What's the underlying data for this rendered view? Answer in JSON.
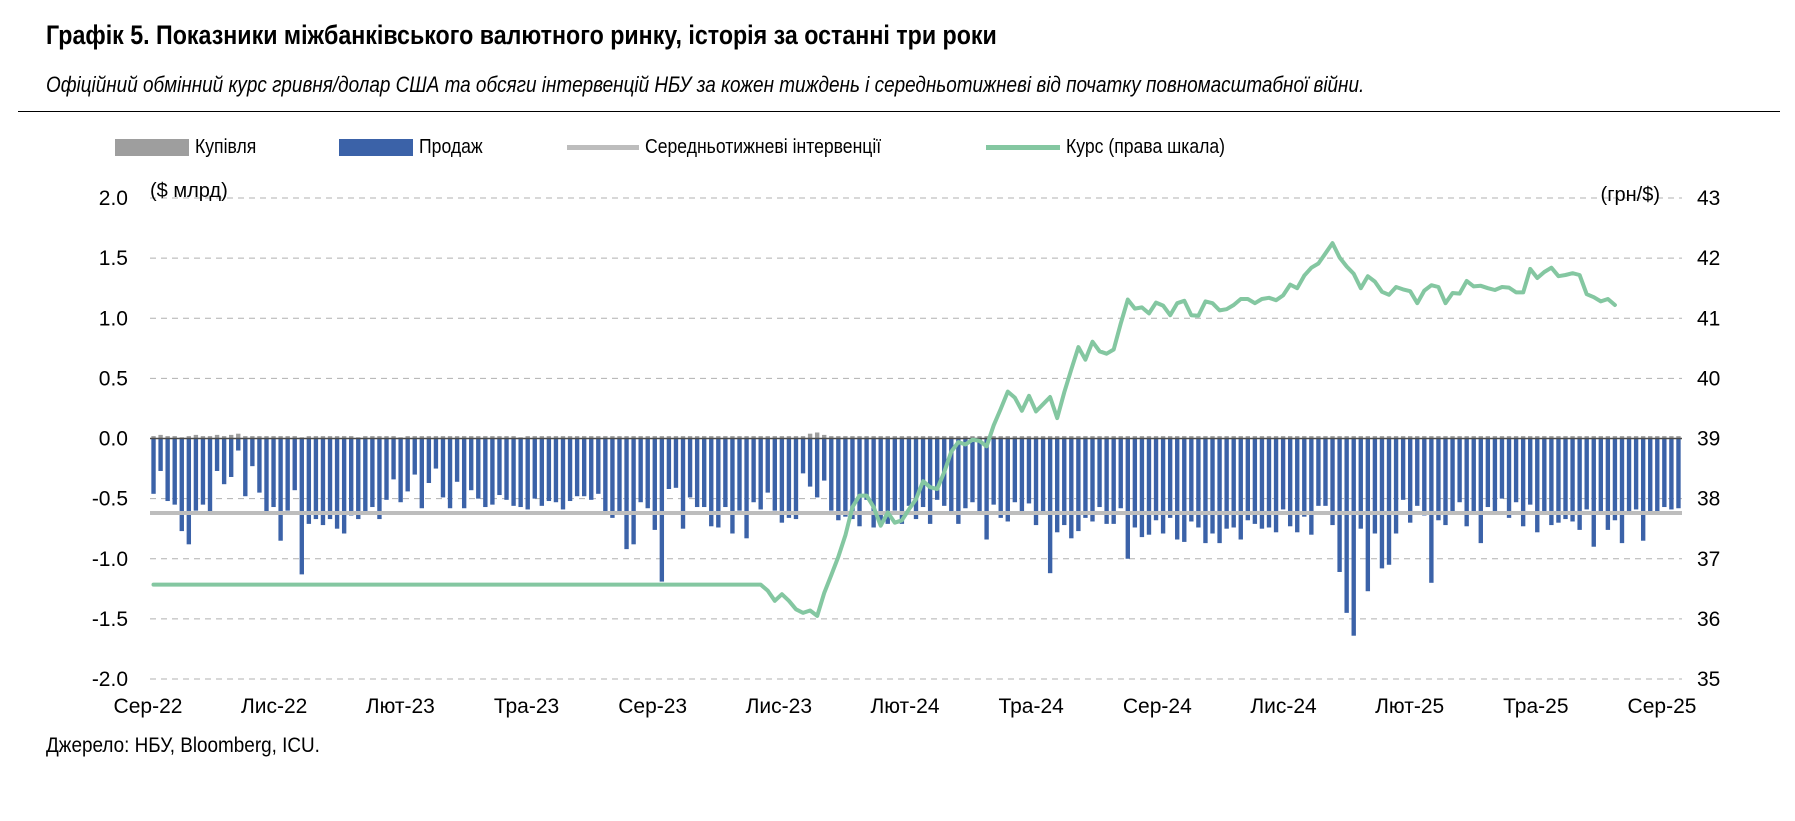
{
  "header": {
    "title": "Графік 5. Показники міжбанківського валютного ринку, історія за останні три роки",
    "subtitle": "Офіційний обмінний курс гривня/долар США та обсяги інтервенцій НБУ за кожен тиждень і середньотижневі від початку повномасштабної війни."
  },
  "footer": {
    "source": "Джерело: НБУ, Bloomberg, ICU."
  },
  "colors": {
    "buy": "#9e9e9e",
    "sell": "#3b62a8",
    "average": "#bdbdbd",
    "rate": "#84c7a1",
    "grid": "#b0b0b0"
  },
  "chart_data": {
    "type": "bar",
    "legend": [
      {
        "label": "Купівля",
        "kind": "bar",
        "color": "#9e9e9e"
      },
      {
        "label": "Продаж",
        "kind": "bar",
        "color": "#3b62a8"
      },
      {
        "label": "Середньотижневі інтервенції",
        "kind": "line",
        "color": "#bdbdbd"
      },
      {
        "label": "Курс (права шкала)",
        "kind": "line",
        "color": "#84c7a1"
      }
    ],
    "legend_position": "top",
    "grid": true,
    "y_left": {
      "unit_label": "($ млрд)",
      "range": [
        -2.0,
        2.0
      ],
      "ticks": [
        "2.0",
        "1.5",
        "1.0",
        "0.5",
        "0.0",
        "-0.5",
        "-1.0",
        "-1.5",
        "-2.0"
      ]
    },
    "y_right": {
      "unit_label": "(грн/$)",
      "range": [
        35,
        43
      ],
      "ticks": [
        "43",
        "42",
        "41",
        "40",
        "39",
        "38",
        "37",
        "36",
        "35"
      ]
    },
    "x_tick_labels": [
      "Сер-22",
      "Лис-22",
      "Лют-23",
      "Тра-23",
      "Сер-23",
      "Лис-23",
      "Лют-24",
      "Тра-24",
      "Сер-24",
      "Лис-24",
      "Лют-25",
      "Тра-25",
      "Сер-25"
    ],
    "series": [
      {
        "name": "Продаж",
        "values": [
          -0.46,
          -0.27,
          -0.52,
          -0.55,
          -0.77,
          -0.88,
          -0.6,
          -0.55,
          -0.63,
          -0.27,
          -0.38,
          -0.32,
          -0.1,
          -0.48,
          -0.23,
          -0.45,
          -0.62,
          -0.57,
          -0.85,
          -0.6,
          -0.43,
          -1.13,
          -0.71,
          -0.67,
          -0.72,
          -0.67,
          -0.75,
          -0.79,
          -0.64,
          -0.67,
          -0.61,
          -0.57,
          -0.67,
          -0.51,
          -0.34,
          -0.53,
          -0.44,
          -0.3,
          -0.58,
          -0.37,
          -0.25,
          -0.49,
          -0.58,
          -0.36,
          -0.58,
          -0.43,
          -0.5,
          -0.57,
          -0.55,
          -0.47,
          -0.51,
          -0.56,
          -0.57,
          -0.59,
          -0.5,
          -0.56,
          -0.52,
          -0.53,
          -0.59,
          -0.52,
          -0.48,
          -0.48,
          -0.51,
          -0.46,
          -0.61,
          -0.66,
          -0.61,
          -0.92,
          -0.88,
          -0.53,
          -0.58,
          -0.76,
          -1.19,
          -0.42,
          -0.41,
          -0.75,
          -0.49,
          -0.57,
          -0.57,
          -0.73,
          -0.74,
          -0.57,
          -0.79,
          -0.6,
          -0.83,
          -0.53,
          -0.59,
          -0.45,
          -0.6,
          -0.7,
          -0.66,
          -0.67,
          -0.29,
          -0.4,
          -0.49,
          -0.35,
          -0.6,
          -0.68,
          -0.65,
          -0.67,
          -0.73,
          -0.51,
          -0.74,
          -0.72,
          -0.71,
          -0.6,
          -0.71,
          -0.56,
          -0.67,
          -0.57,
          -0.71,
          -0.51,
          -0.56,
          -0.63,
          -0.71,
          -0.58,
          -0.53,
          -0.63,
          -0.84,
          -0.55,
          -0.66,
          -0.69,
          -0.53,
          -0.63,
          -0.54,
          -0.72,
          -0.61,
          -1.12,
          -0.78,
          -0.72,
          -0.83,
          -0.77,
          -0.66,
          -0.69,
          -0.57,
          -0.71,
          -0.71,
          -0.58,
          -1.0,
          -0.74,
          -0.82,
          -0.8,
          -0.68,
          -0.79,
          -0.66,
          -0.84,
          -0.86,
          -0.69,
          -0.74,
          -0.87,
          -0.79,
          -0.87,
          -0.75,
          -0.74,
          -0.84,
          -0.68,
          -0.71,
          -0.75,
          -0.74,
          -0.78,
          -0.59,
          -0.73,
          -0.78,
          -0.65,
          -0.8,
          -0.56,
          -0.56,
          -0.72,
          -1.11,
          -1.45,
          -1.64,
          -0.75,
          -1.27,
          -0.79,
          -1.08,
          -1.05,
          -0.79,
          -0.51,
          -0.7,
          -0.56,
          -0.64,
          -1.2,
          -0.68,
          -0.72,
          -0.62,
          -0.53,
          -0.73,
          -0.61,
          -0.87,
          -0.57,
          -0.63,
          -0.5,
          -0.66,
          -0.53,
          -0.73,
          -0.55,
          -0.78,
          -0.62,
          -0.72,
          -0.7,
          -0.67,
          -0.69,
          -0.76,
          -0.59,
          -0.9,
          -0.61,
          -0.76,
          -0.68,
          -0.87,
          -0.62,
          -0.59,
          -0.85,
          -0.61,
          -0.61,
          -0.57,
          -0.59,
          -0.58
        ]
      },
      {
        "name": "Купівля",
        "values": [
          0.02,
          0.03,
          0.02,
          0.02,
          0.01,
          0.02,
          0.03,
          0.02,
          0.02,
          0.03,
          0.02,
          0.03,
          0.04,
          0.02,
          0.02,
          0.02,
          0.02,
          0.02,
          0.02,
          0.02,
          0.02,
          0.01,
          0.02,
          0.02,
          0.02,
          0.02,
          0.02,
          0.02,
          0.02,
          0.01,
          0.02,
          0.02,
          0.02,
          0.02,
          0.02,
          0.01,
          0.02,
          0.02,
          0.02,
          0.02,
          0.02,
          0.02,
          0.02,
          0.02,
          0.02,
          0.02,
          0.02,
          0.02,
          0.02,
          0.02,
          0.02,
          0.02,
          0.01,
          0.02,
          0.02,
          0.02,
          0.02,
          0.02,
          0.02,
          0.02,
          0.02,
          0.02,
          0.02,
          0.02,
          0.02,
          0.02,
          0.02,
          0.02,
          0.02,
          0.02,
          0.02,
          0.02,
          0.02,
          0.02,
          0.02,
          0.02,
          0.02,
          0.02,
          0.02,
          0.02,
          0.02,
          0.02,
          0.02,
          0.02,
          0.02,
          0.02,
          0.02,
          0.02,
          0.02,
          0.02,
          0.02,
          0.02,
          0.02,
          0.04,
          0.05,
          0.03,
          0.02,
          0.02,
          0.02,
          0.02,
          0.02,
          0.02,
          0.02,
          0.02,
          0.02,
          0.02,
          0.02,
          0.02,
          0.02,
          0.02,
          0.02,
          0.02,
          0.02,
          0.02,
          0.02,
          0.02,
          0.02,
          0.02,
          0.02,
          0.02,
          0.02,
          0.02,
          0.02,
          0.02,
          0.02,
          0.02,
          0.02,
          0.02,
          0.02,
          0.02,
          0.02,
          0.02,
          0.02,
          0.02,
          0.02,
          0.02,
          0.02,
          0.02,
          0.02,
          0.02,
          0.02,
          0.02,
          0.02,
          0.02,
          0.02,
          0.02,
          0.02,
          0.02,
          0.02,
          0.02,
          0.02,
          0.02,
          0.02,
          0.02,
          0.02,
          0.02,
          0.02,
          0.02,
          0.02,
          0.02,
          0.02,
          0.02,
          0.02,
          0.02,
          0.02,
          0.02,
          0.02,
          0.02,
          0.02,
          0.02,
          0.02,
          0.02,
          0.02,
          0.02,
          0.02,
          0.02,
          0.02,
          0.02,
          0.02,
          0.02,
          0.02,
          0.02,
          0.02,
          0.02,
          0.02,
          0.02,
          0.02,
          0.02,
          0.02,
          0.02,
          0.02,
          0.02,
          0.02,
          0.02,
          0.02,
          0.02,
          0.02,
          0.02,
          0.02,
          0.02,
          0.02,
          0.02,
          0.02,
          0.02,
          0.02,
          0.02,
          0.02,
          0.02,
          0.02,
          0.02,
          0.02,
          0.02,
          0.02,
          0.02,
          0.02,
          0.02,
          0.02,
          0.02,
          0.02,
          0.02,
          0.02,
          0.02,
          0.02,
          0.02,
          0.02,
          0.02
        ]
      },
      {
        "name": "Середньотижневі інтервенції",
        "value": -0.62
      },
      {
        "name": "Курс (права шкала)",
        "axis": "right",
        "points": [
          [
            0,
            36.57
          ],
          [
            86,
            36.57
          ],
          [
            87,
            36.47
          ],
          [
            88,
            36.3
          ],
          [
            89,
            36.41
          ],
          [
            90,
            36.3
          ],
          [
            91,
            36.16
          ],
          [
            92,
            36.1
          ],
          [
            93,
            36.14
          ],
          [
            94,
            36.05
          ],
          [
            95,
            36.43
          ],
          [
            96,
            36.73
          ],
          [
            97,
            37.03
          ],
          [
            98,
            37.39
          ],
          [
            99,
            37.86
          ],
          [
            100,
            38.05
          ],
          [
            101,
            38.05
          ],
          [
            102,
            37.86
          ],
          [
            103,
            37.55
          ],
          [
            104,
            37.77
          ],
          [
            105,
            37.6
          ],
          [
            106,
            37.64
          ],
          [
            107,
            37.82
          ],
          [
            108,
            37.99
          ],
          [
            109,
            38.29
          ],
          [
            110,
            38.19
          ],
          [
            111,
            38.16
          ],
          [
            112,
            38.44
          ],
          [
            113,
            38.78
          ],
          [
            114,
            38.94
          ],
          [
            115,
            38.9
          ],
          [
            116,
            38.98
          ],
          [
            117,
            38.96
          ],
          [
            118,
            38.87
          ],
          [
            119,
            39.22
          ],
          [
            120,
            39.49
          ],
          [
            121,
            39.78
          ],
          [
            122,
            39.68
          ],
          [
            123,
            39.46
          ],
          [
            124,
            39.71
          ],
          [
            125,
            39.45
          ],
          [
            126,
            39.57
          ],
          [
            127,
            39.69
          ],
          [
            128,
            39.34
          ],
          [
            129,
            39.77
          ],
          [
            130,
            40.15
          ],
          [
            131,
            40.52
          ],
          [
            132,
            40.31
          ],
          [
            133,
            40.61
          ],
          [
            134,
            40.45
          ],
          [
            135,
            40.41
          ],
          [
            136,
            40.48
          ],
          [
            137,
            40.91
          ],
          [
            138,
            41.31
          ],
          [
            139,
            41.16
          ],
          [
            140,
            41.18
          ],
          [
            141,
            41.08
          ],
          [
            142,
            41.26
          ],
          [
            143,
            41.21
          ],
          [
            144,
            41.05
          ],
          [
            145,
            41.25
          ],
          [
            146,
            41.29
          ],
          [
            147,
            41.05
          ],
          [
            148,
            41.04
          ],
          [
            149,
            41.28
          ],
          [
            150,
            41.25
          ],
          [
            151,
            41.13
          ],
          [
            152,
            41.15
          ],
          [
            153,
            41.22
          ],
          [
            154,
            41.32
          ],
          [
            155,
            41.32
          ],
          [
            156,
            41.25
          ],
          [
            157,
            41.32
          ],
          [
            158,
            41.34
          ],
          [
            159,
            41.3
          ],
          [
            160,
            41.38
          ],
          [
            161,
            41.56
          ],
          [
            162,
            41.5
          ],
          [
            163,
            41.71
          ],
          [
            164,
            41.84
          ],
          [
            165,
            41.91
          ],
          [
            166,
            42.08
          ],
          [
            167,
            42.25
          ],
          [
            168,
            42.01
          ],
          [
            169,
            41.86
          ],
          [
            170,
            41.74
          ],
          [
            171,
            41.5
          ],
          [
            172,
            41.7
          ],
          [
            173,
            41.61
          ],
          [
            174,
            41.44
          ],
          [
            175,
            41.39
          ],
          [
            176,
            41.52
          ],
          [
            177,
            41.48
          ],
          [
            178,
            41.45
          ],
          [
            179,
            41.25
          ],
          [
            180,
            41.46
          ],
          [
            181,
            41.55
          ],
          [
            182,
            41.52
          ],
          [
            183,
            41.25
          ],
          [
            184,
            41.42
          ],
          [
            185,
            41.41
          ],
          [
            186,
            41.62
          ],
          [
            187,
            41.53
          ],
          [
            188,
            41.54
          ],
          [
            189,
            41.5
          ],
          [
            190,
            41.47
          ],
          [
            191,
            41.52
          ],
          [
            192,
            41.51
          ],
          [
            193,
            41.43
          ],
          [
            194,
            41.43
          ],
          [
            195,
            41.82
          ],
          [
            196,
            41.67
          ],
          [
            197,
            41.77
          ],
          [
            198,
            41.84
          ],
          [
            199,
            41.7
          ],
          [
            200,
            41.72
          ],
          [
            201,
            41.75
          ],
          [
            202,
            41.72
          ],
          [
            203,
            41.4
          ],
          [
            204,
            41.35
          ],
          [
            205,
            41.28
          ],
          [
            206,
            41.32
          ],
          [
            207,
            41.22
          ]
        ]
      }
    ]
  }
}
